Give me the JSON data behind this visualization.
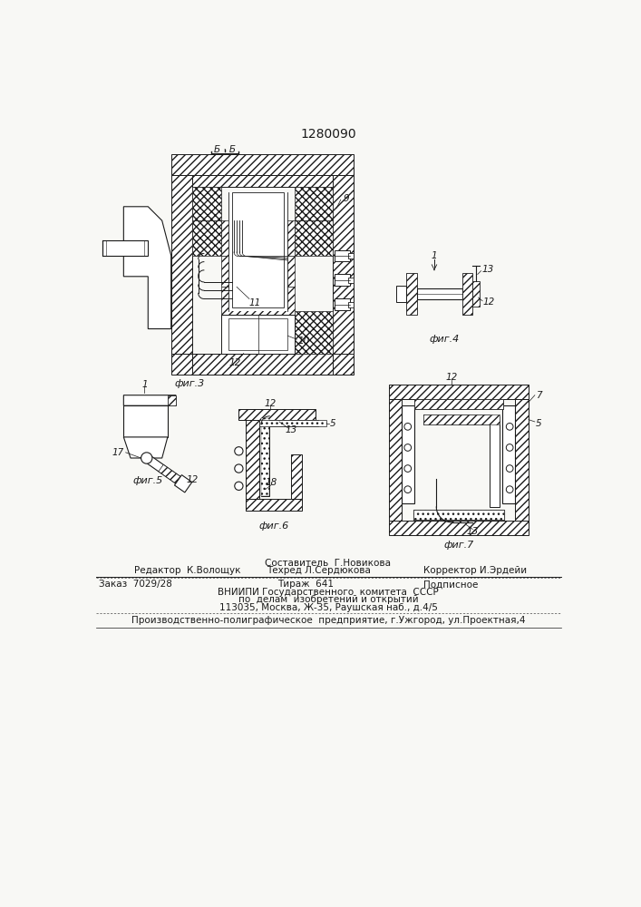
{
  "patent_number": "1280090",
  "bg": "#f8f8f5",
  "lc": "#1a1a1a",
  "footer_составитель": "Составитель  Г.Новикова",
  "footer_редактор": "Редактор  К.Волощук",
  "footer_техред": "Техред Л.Сердюкова",
  "footer_корректор": "Корректор И.Эрдейи",
  "footer_заказ": "Заказ  7029/28",
  "footer_тираж": "Тираж  641",
  "footer_подписное": "Подписное",
  "footer_вниипи": "ВНИИПИ Государственного  комитета  СССР",
  "footer_делам": "по  делам  изобретений и открытий",
  "footer_адрес": "113035, Москва, Ж-35, Раушская наб., д.4/5",
  "footer_предприятие": "Производственно-полиграфическое  предприятие, г.Ужгород, ул.Проектная,4"
}
